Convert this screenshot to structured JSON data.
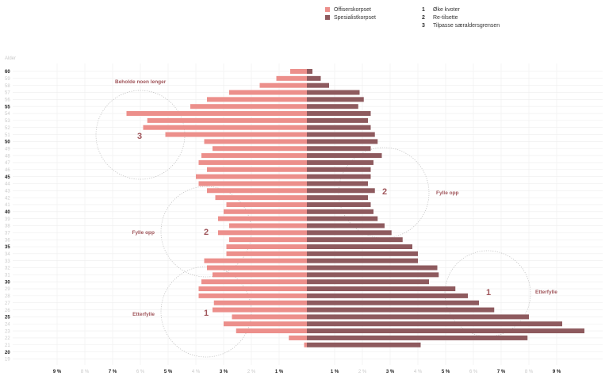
{
  "chart_data": {
    "type": "bar",
    "orientation": "horizontal-butterfly",
    "title": "",
    "ylabel": "Alder",
    "categories": [
      60,
      59,
      58,
      57,
      56,
      55,
      54,
      53,
      52,
      51,
      50,
      49,
      48,
      47,
      46,
      45,
      44,
      43,
      42,
      41,
      40,
      39,
      38,
      37,
      36,
      35,
      34,
      33,
      32,
      31,
      30,
      29,
      28,
      27,
      26,
      25,
      24,
      23,
      22,
      21,
      20,
      19
    ],
    "series": [
      {
        "name": "Offiserskorpset",
        "side": "left",
        "color": "#ec8f8b",
        "values": [
          0.6,
          1.1,
          1.7,
          2.8,
          3.6,
          4.2,
          6.5,
          5.75,
          5.9,
          5.1,
          3.7,
          3.4,
          3.8,
          3.9,
          3.6,
          4.0,
          3.9,
          3.6,
          3.3,
          2.9,
          3.0,
          3.2,
          2.8,
          3.2,
          2.8,
          2.9,
          2.9,
          3.7,
          3.6,
          3.4,
          3.8,
          3.9,
          3.9,
          3.35,
          3.4,
          2.7,
          3.0,
          2.55,
          0.65,
          0.1,
          0,
          0
        ]
      },
      {
        "name": "Spesialistkorpset",
        "side": "right",
        "color": "#8e5a5e",
        "values": [
          0.2,
          0.5,
          0.8,
          1.9,
          2.05,
          1.85,
          2.3,
          2.2,
          2.3,
          2.45,
          2.55,
          2.3,
          2.7,
          2.4,
          2.3,
          2.3,
          2.2,
          2.45,
          2.2,
          2.3,
          2.4,
          2.55,
          2.8,
          3.05,
          3.45,
          3.8,
          4.0,
          4.0,
          4.7,
          4.75,
          4.4,
          5.35,
          5.8,
          6.2,
          6.75,
          8.0,
          9.2,
          10.0,
          7.95,
          4.1,
          0,
          0
        ]
      }
    ],
    "x_ticks_left": [
      "9 %",
      "8 %",
      "7 %",
      "6 %",
      "5 %",
      "4 %",
      "3 %",
      "2 %",
      "1 %"
    ],
    "x_ticks_right": [
      "1 %",
      "2 %",
      "3 %",
      "4 %",
      "5 %",
      "6 %",
      "7 %",
      "8 %",
      "9 %"
    ],
    "x_tick_values": [
      1,
      2,
      3,
      4,
      5,
      6,
      7,
      8,
      9
    ],
    "xlim": [
      0,
      10
    ],
    "y_labels_bold": [
      60,
      55,
      50,
      45,
      40,
      35,
      30,
      25,
      20
    ],
    "grid": true,
    "annotations": [
      {
        "label": "Beholde noen lenger",
        "number": "3"
      },
      {
        "label": "Fylle opp",
        "number": "2"
      },
      {
        "label": "Fylle opp",
        "number": "2"
      },
      {
        "label": "Etterfylle",
        "number": "1"
      },
      {
        "label": "Etterfylle",
        "number": "1"
      }
    ],
    "key": [
      {
        "number": "1",
        "text": "Øke kvoter"
      },
      {
        "number": "2",
        "text": "Re-tilsette"
      },
      {
        "number": "3",
        "text": "Tilpasse særaldersgrensen"
      }
    ]
  },
  "colors": {
    "bold_label": "#222222",
    "muted_label": "#c9c9c9",
    "annotation": "#a0565b",
    "grid": "#eeeeee",
    "circle": "#bbbbbb"
  }
}
